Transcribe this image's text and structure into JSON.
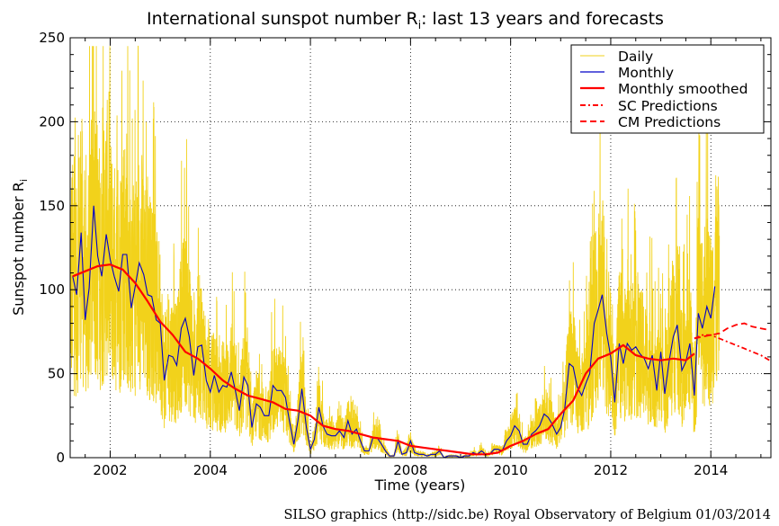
{
  "chart_data": {
    "type": "line",
    "title": "International sunspot number R",
    "title_subscript": "i",
    "title_suffix": ": last 13 years and forecasts",
    "xlabel": "Time (years)",
    "ylabel": "Sunspot number R",
    "ylabel_subscript": "i",
    "xlim": [
      2001.2,
      2015.2
    ],
    "ylim": [
      0,
      250
    ],
    "grid": true,
    "legend_position": "top-right",
    "x_ticks": [
      2002,
      2004,
      2006,
      2008,
      2010,
      2012,
      2014
    ],
    "x_tick_labels": [
      "2002",
      "2004",
      "2006",
      "2008",
      "2010",
      "2012",
      "2014"
    ],
    "y_ticks": [
      0,
      50,
      100,
      150,
      200,
      250
    ],
    "y_tick_labels": [
      "0",
      "50",
      "100",
      "150",
      "200",
      "250"
    ],
    "footer": "SILSO graphics (http://sidc.be)  Royal Observatory of Belgium  01/03/2014",
    "series": [
      {
        "name": "Daily",
        "style": "solid",
        "color": "#f2d21b",
        "generated": "noisy daily values around monthly series, 2001.2–2014.17, peaks up to ~240"
      },
      {
        "name": "Monthly",
        "style": "solid",
        "color": "#0000c8",
        "x": [
          2001.25,
          2001.33,
          2001.42,
          2001.5,
          2001.58,
          2001.67,
          2001.75,
          2001.83,
          2001.92,
          2002.0,
          2002.08,
          2002.17,
          2002.25,
          2002.33,
          2002.42,
          2002.5,
          2002.58,
          2002.67,
          2002.75,
          2002.83,
          2002.92,
          2003.0,
          2003.08,
          2003.17,
          2003.25,
          2003.33,
          2003.42,
          2003.5,
          2003.58,
          2003.67,
          2003.75,
          2003.83,
          2003.92,
          2004.0,
          2004.08,
          2004.17,
          2004.25,
          2004.33,
          2004.42,
          2004.5,
          2004.58,
          2004.67,
          2004.75,
          2004.83,
          2004.92,
          2005.0,
          2005.08,
          2005.17,
          2005.25,
          2005.33,
          2005.42,
          2005.5,
          2005.58,
          2005.67,
          2005.75,
          2005.83,
          2005.92,
          2006.0,
          2006.08,
          2006.17,
          2006.25,
          2006.33,
          2006.42,
          2006.5,
          2006.58,
          2006.67,
          2006.75,
          2006.83,
          2006.92,
          2007.0,
          2007.08,
          2007.17,
          2007.25,
          2007.33,
          2007.42,
          2007.5,
          2007.58,
          2007.67,
          2007.75,
          2007.83,
          2007.92,
          2008.0,
          2008.08,
          2008.17,
          2008.25,
          2008.33,
          2008.42,
          2008.5,
          2008.58,
          2008.67,
          2008.75,
          2008.83,
          2008.92,
          2009.0,
          2009.08,
          2009.17,
          2009.25,
          2009.33,
          2009.42,
          2009.5,
          2009.58,
          2009.67,
          2009.75,
          2009.83,
          2009.92,
          2010.0,
          2010.08,
          2010.17,
          2010.25,
          2010.33,
          2010.42,
          2010.5,
          2010.58,
          2010.67,
          2010.75,
          2010.83,
          2010.92,
          2011.0,
          2011.08,
          2011.17,
          2011.25,
          2011.33,
          2011.42,
          2011.5,
          2011.58,
          2011.67,
          2011.75,
          2011.83,
          2011.92,
          2012.0,
          2012.08,
          2012.17,
          2012.25,
          2012.33,
          2012.42,
          2012.5,
          2012.58,
          2012.67,
          2012.75,
          2012.83,
          2012.92,
          2013.0,
          2013.08,
          2013.17,
          2013.25,
          2013.33,
          2013.42,
          2013.5,
          2013.58,
          2013.67,
          2013.75,
          2013.83,
          2013.92,
          2014.0,
          2014.08
        ],
        "values": [
          108,
          97,
          134,
          82,
          101,
          150,
          120,
          108,
          133,
          118,
          108,
          99,
          121,
          121,
          89,
          102,
          116,
          109,
          97,
          96,
          82,
          80,
          46,
          61,
          60,
          55,
          77,
          83,
          72,
          49,
          66,
          67,
          46,
          39,
          49,
          39,
          43,
          42,
          51,
          40,
          28,
          48,
          43,
          18,
          32,
          30,
          25,
          25,
          43,
          40,
          40,
          36,
          22,
          8,
          22,
          41,
          18,
          5,
          11,
          30,
          19,
          14,
          13,
          13,
          16,
          12,
          22,
          14,
          17,
          10,
          4,
          4,
          12,
          12,
          8,
          4,
          1,
          1,
          10,
          2,
          3,
          10,
          3,
          2,
          2,
          1,
          2,
          2,
          4,
          0,
          1,
          1,
          1,
          0,
          1,
          1,
          3,
          2,
          4,
          2,
          2,
          5,
          5,
          4,
          10,
          13,
          19,
          16,
          8,
          8,
          14,
          16,
          19,
          26,
          24,
          20,
          14,
          18,
          29,
          56,
          54,
          42,
          37,
          44,
          50,
          80,
          88,
          97,
          74,
          60,
          33,
          68,
          56,
          68,
          64,
          66,
          62,
          59,
          53,
          61,
          40,
          63,
          38,
          58,
          72,
          79,
          52,
          57,
          68,
          37,
          86,
          77,
          90,
          83,
          102
        ]
      },
      {
        "name": "Monthly smoothed",
        "style": "solid",
        "color": "#ff0000",
        "x": [
          2001.25,
          2001.5,
          2001.75,
          2002.0,
          2002.25,
          2002.5,
          2002.75,
          2003.0,
          2003.25,
          2003.5,
          2003.75,
          2004.0,
          2004.25,
          2004.5,
          2004.75,
          2005.0,
          2005.25,
          2005.5,
          2005.75,
          2006.0,
          2006.25,
          2006.5,
          2006.75,
          2007.0,
          2007.25,
          2007.5,
          2007.75,
          2008.0,
          2008.25,
          2008.5,
          2008.75,
          2009.0,
          2009.25,
          2009.5,
          2009.75,
          2010.0,
          2010.25,
          2010.5,
          2010.75,
          2011.0,
          2011.25,
          2011.5,
          2011.75,
          2012.0,
          2012.25,
          2012.5,
          2012.75,
          2013.0,
          2013.25,
          2013.5,
          2013.67
        ],
        "values": [
          108,
          111,
          114,
          115,
          112,
          104,
          93,
          81,
          73,
          63,
          59,
          53,
          46,
          41,
          37,
          35,
          33,
          29,
          28,
          25,
          19,
          17,
          16,
          14,
          12,
          11,
          10,
          7,
          6,
          5,
          4,
          3,
          2,
          2,
          3,
          7,
          10,
          14,
          17,
          26,
          34,
          50,
          59,
          62,
          67,
          61,
          59,
          58,
          59,
          58,
          62
        ]
      },
      {
        "name": "SC Predictions",
        "style": "dashdot",
        "color": "#ff0000",
        "x": [
          2013.67,
          2013.83,
          2014.0,
          2014.17,
          2014.33,
          2014.5,
          2014.67,
          2014.83,
          2015.0,
          2015.17
        ],
        "values": [
          71,
          73,
          73,
          71,
          69,
          67,
          65,
          63,
          61,
          58
        ]
      },
      {
        "name": "CM Predictions",
        "style": "dashed",
        "color": "#ff0000",
        "x": [
          2013.67,
          2013.83,
          2014.0,
          2014.17,
          2014.33,
          2014.5,
          2014.67,
          2014.83,
          2015.0,
          2015.17
        ],
        "values": [
          71,
          72,
          73,
          74,
          77,
          79,
          80,
          78,
          77,
          76
        ]
      }
    ],
    "legend": [
      "Daily",
      "Monthly",
      "Monthly smoothed",
      "SC Predictions",
      "CM Predictions"
    ]
  }
}
